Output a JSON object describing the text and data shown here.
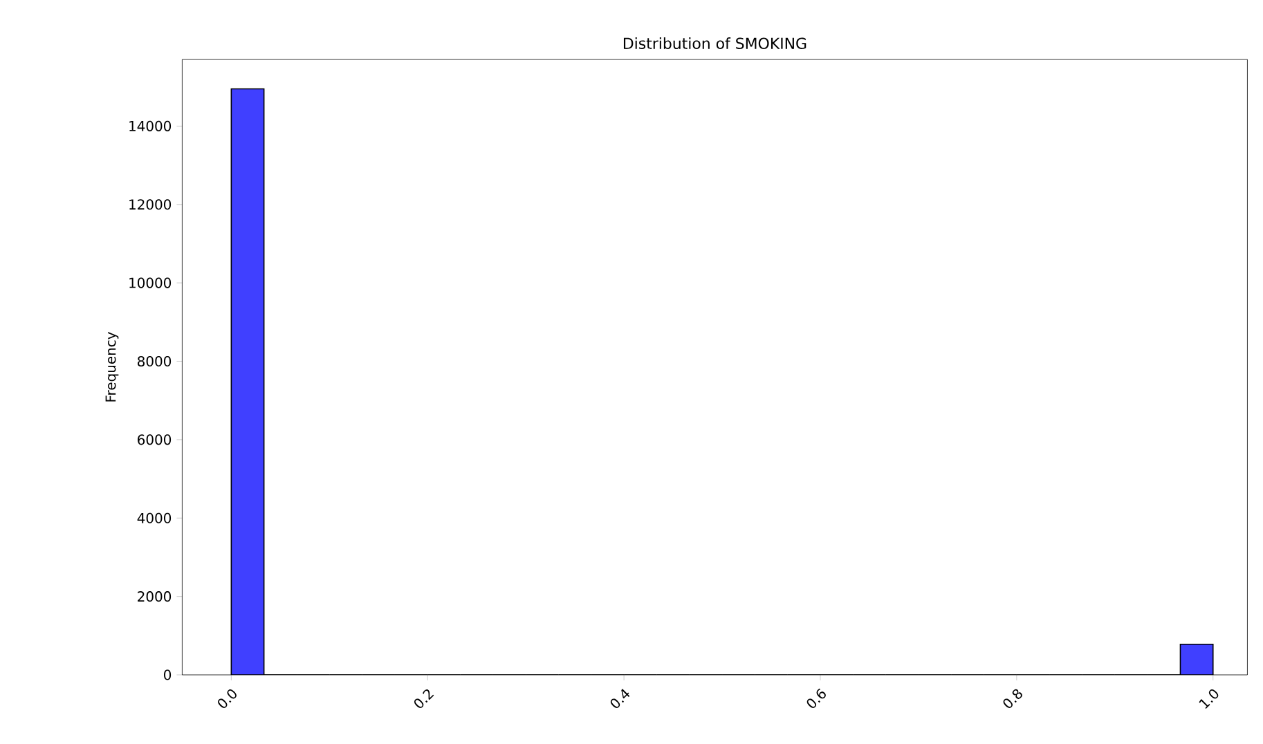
{
  "chart_data": {
    "type": "histogram",
    "title": "Distribution of SMOKING",
    "ylabel": "Frequency",
    "bins": [
      0,
      0.0333,
      0.0667,
      0.1,
      0.1333,
      0.1667,
      0.2,
      0.2333,
      0.2667,
      0.3,
      0.3333,
      0.3667,
      0.4,
      0.4333,
      0.4667,
      0.5,
      0.5333,
      0.5667,
      0.6,
      0.6333,
      0.6667,
      0.7,
      0.7333,
      0.7667,
      0.8,
      0.8333,
      0.8667,
      0.9,
      0.9333,
      0.9667,
      1
    ],
    "values": [
      14950,
      0,
      0,
      0,
      0,
      0,
      0,
      0,
      0,
      0,
      0,
      0,
      0,
      0,
      0,
      0,
      0,
      0,
      0,
      0,
      0,
      0,
      0,
      0,
      0,
      0,
      0,
      0,
      0,
      780
    ],
    "color": "#4040ff",
    "xlim": [
      -0.05,
      1.035
    ],
    "ylim": [
      0,
      15700
    ],
    "xticks": [
      {
        "value": 0,
        "label": "0.0"
      },
      0.2,
      0.4,
      0.6,
      0.8,
      {
        "value": 1,
        "label": "1.0"
      }
    ],
    "yticks": [
      0,
      2000,
      4000,
      6000,
      8000,
      10000,
      12000,
      14000
    ],
    "grid": false
  }
}
